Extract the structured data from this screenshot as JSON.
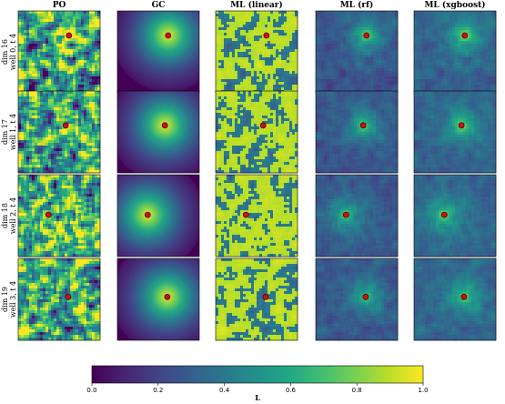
{
  "chart_data": {
    "type": "heatmap",
    "columns": [
      "PO",
      "GC",
      "ML (linear)",
      "ML (rf)",
      "ML (xgboost)"
    ],
    "rows": [
      {
        "label_line1": "dim 16",
        "label_line2": "well 0, t 4"
      },
      {
        "label_line1": "dim 17",
        "label_line2": "well 1, t 4"
      },
      {
        "label_line1": "dim 18",
        "label_line2": "well 2, t 4"
      },
      {
        "label_line1": "dim 19",
        "label_line2": "well 3, t 4"
      }
    ],
    "well_positions": [
      {
        "x": 0.62,
        "y": 0.3
      },
      {
        "x": 0.58,
        "y": 0.42
      },
      {
        "x": 0.37,
        "y": 0.49
      },
      {
        "x": 0.61,
        "y": 0.47
      }
    ],
    "colorbar": {
      "label": "L",
      "min": 0.0,
      "max": 1.0,
      "ticks": [
        "0.0",
        "0.2",
        "0.4",
        "0.6",
        "0.8",
        "1.0"
      ],
      "colormap": "viridis"
    },
    "marker_color": "#cc1111",
    "marker_edge": "#5a0000"
  }
}
